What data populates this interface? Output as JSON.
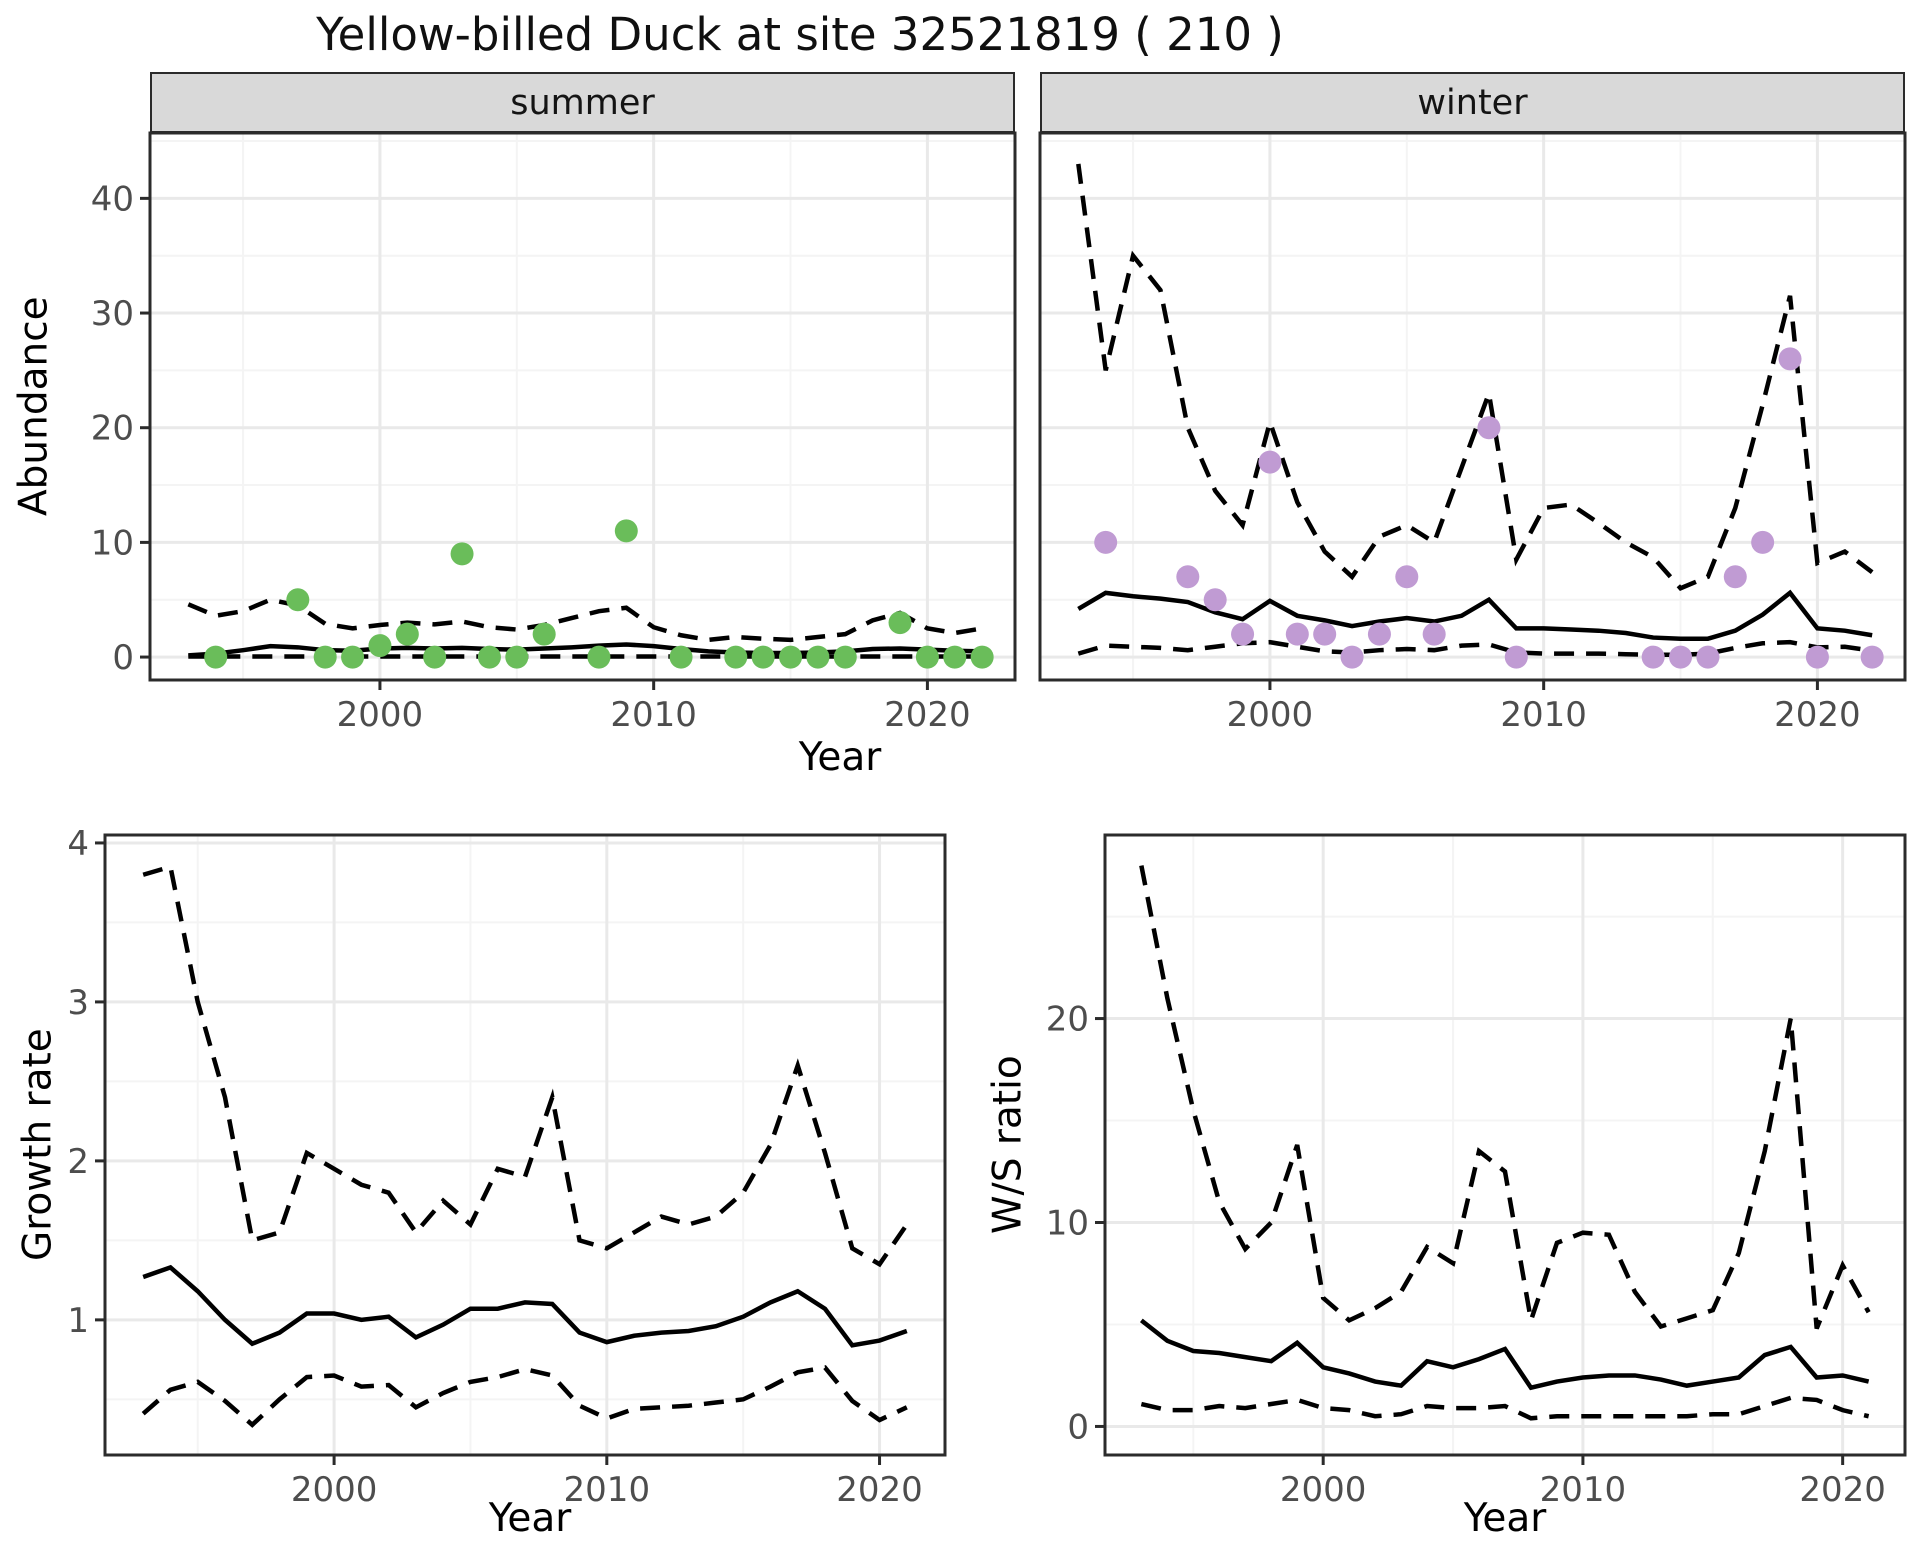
{
  "title": "Yellow-billed Duck at site 32521819 ( 210 )",
  "colors": {
    "summer_point": "#6abd5a",
    "winter_point": "#c09bd3",
    "line": "#000000",
    "grid_major": "#e9e9e9",
    "grid_minor": "#f4f4f4",
    "strip_bg": "#d9d9d9",
    "tick_text": "#4d4d4d",
    "border": "#2b2b2b"
  },
  "chart_data": [
    {
      "type": "line",
      "id": "abundance",
      "xlabel": "Year",
      "ylabel": "Abundance",
      "x_ticks": [
        2000,
        2010,
        2020
      ],
      "y_ticks": [
        0,
        10,
        20,
        30,
        40
      ],
      "x_minor": [
        1995,
        2005,
        2015
      ],
      "y_minor": [
        5,
        15,
        25,
        35,
        45
      ],
      "xlim": [
        1991.6,
        2023.2
      ],
      "ylim": [
        -2,
        45.7
      ],
      "years": [
        1993,
        1994,
        1995,
        1996,
        1997,
        1998,
        1999,
        2000,
        2001,
        2002,
        2003,
        2004,
        2005,
        2006,
        2007,
        2008,
        2009,
        2010,
        2011,
        2012,
        2013,
        2014,
        2015,
        2016,
        2017,
        2018,
        2019,
        2020,
        2021,
        2022
      ],
      "legend": "none",
      "grid": true,
      "facets": [
        {
          "facet_label": "summer",
          "median": [
            0.15,
            0.3,
            0.6,
            0.95,
            0.85,
            0.6,
            0.55,
            0.75,
            0.8,
            0.75,
            0.8,
            0.7,
            0.65,
            0.75,
            0.85,
            1.0,
            1.1,
            0.95,
            0.7,
            0.5,
            0.4,
            0.35,
            0.35,
            0.4,
            0.5,
            0.7,
            0.75,
            0.65,
            0.55,
            0.5
          ],
          "upper": [
            4.6,
            3.6,
            4.0,
            5.0,
            4.5,
            2.9,
            2.5,
            2.8,
            3.0,
            2.85,
            3.1,
            2.6,
            2.4,
            2.8,
            3.4,
            4.0,
            4.3,
            2.6,
            1.9,
            1.5,
            1.75,
            1.6,
            1.5,
            1.75,
            2.0,
            3.2,
            3.85,
            2.5,
            2.1,
            2.5
          ],
          "lower": [
            0.05,
            0.05,
            0.05,
            0.05,
            0.05,
            0.05,
            0.05,
            0.05,
            0.05,
            0.05,
            0.05,
            0.05,
            0.05,
            0.05,
            0.05,
            0.05,
            0.05,
            0.05,
            0.05,
            0.05,
            0.05,
            0.05,
            0.05,
            0.05,
            0.05,
            0.05,
            0.05,
            0.05,
            0.05,
            0.05
          ],
          "points": [
            [
              1994,
              0
            ],
            [
              1997,
              5
            ],
            [
              1998,
              0
            ],
            [
              1999,
              0
            ],
            [
              2000,
              1
            ],
            [
              2001,
              2
            ],
            [
              2002,
              0
            ],
            [
              2003,
              9
            ],
            [
              2004,
              0
            ],
            [
              2005,
              0
            ],
            [
              2006,
              2
            ],
            [
              2008,
              0
            ],
            [
              2009,
              11
            ],
            [
              2011,
              0
            ],
            [
              2013,
              0
            ],
            [
              2014,
              0
            ],
            [
              2015,
              0
            ],
            [
              2016,
              0
            ],
            [
              2017,
              0
            ],
            [
              2019,
              3
            ],
            [
              2020,
              0
            ],
            [
              2021,
              0
            ],
            [
              2022,
              0
            ]
          ]
        },
        {
          "facet_label": "winter",
          "median": [
            4.2,
            5.6,
            5.3,
            5.1,
            4.8,
            3.9,
            3.3,
            4.9,
            3.6,
            3.2,
            2.7,
            3.1,
            3.4,
            3.1,
            3.6,
            5.0,
            2.5,
            2.5,
            2.4,
            2.3,
            2.1,
            1.7,
            1.6,
            1.6,
            2.3,
            3.7,
            5.6,
            2.5,
            2.3,
            1.9
          ],
          "upper": [
            43,
            25,
            35,
            32,
            20,
            14.5,
            11.5,
            20.5,
            13.5,
            9.2,
            7,
            10.5,
            11.5,
            10,
            16.5,
            23,
            8.5,
            13,
            13.3,
            11.7,
            10,
            8.7,
            6,
            7,
            13,
            22,
            31.5,
            8.2,
            9.2,
            7.4
          ],
          "lower": [
            0.3,
            1.0,
            0.9,
            0.8,
            0.6,
            0.9,
            1.2,
            1.3,
            0.9,
            0.5,
            0.4,
            0.6,
            0.7,
            0.6,
            1.0,
            1.1,
            0.4,
            0.3,
            0.3,
            0.3,
            0.25,
            0.2,
            0.2,
            0.3,
            0.8,
            1.2,
            1.3,
            0.85,
            0.9,
            0.55
          ],
          "points": [
            [
              1994,
              10
            ],
            [
              1997,
              7
            ],
            [
              1998,
              5
            ],
            [
              1999,
              2
            ],
            [
              2000,
              17
            ],
            [
              2001,
              2
            ],
            [
              2002,
              2
            ],
            [
              2003,
              0
            ],
            [
              2004,
              2
            ],
            [
              2005,
              7
            ],
            [
              2006,
              2
            ],
            [
              2008,
              20
            ],
            [
              2009,
              0
            ],
            [
              2014,
              0
            ],
            [
              2015,
              0
            ],
            [
              2016,
              0
            ],
            [
              2017,
              7
            ],
            [
              2018,
              10
            ],
            [
              2019,
              26
            ],
            [
              2020,
              0
            ],
            [
              2022,
              0
            ]
          ]
        }
      ]
    },
    {
      "type": "line",
      "id": "growth_rate",
      "xlabel": "Year",
      "ylabel": "Growth rate",
      "x_ticks": [
        2000,
        2010,
        2020
      ],
      "y_ticks": [
        1,
        2,
        3,
        4
      ],
      "x_minor": [
        1995,
        2005,
        2015
      ],
      "y_minor": [
        0.5,
        1.5,
        2.5,
        3.5
      ],
      "xlim": [
        1991.6,
        2022.4
      ],
      "ylim": [
        0.15,
        4.05
      ],
      "years": [
        1993,
        1994,
        1995,
        1996,
        1997,
        1998,
        1999,
        2000,
        2001,
        2002,
        2003,
        2004,
        2005,
        2006,
        2007,
        2008,
        2009,
        2010,
        2011,
        2012,
        2013,
        2014,
        2015,
        2016,
        2017,
        2018,
        2019,
        2020,
        2021
      ],
      "median": [
        1.27,
        1.33,
        1.18,
        1.0,
        0.85,
        0.92,
        1.04,
        1.04,
        1.0,
        1.02,
        0.89,
        0.97,
        1.07,
        1.07,
        1.11,
        1.1,
        0.92,
        0.86,
        0.9,
        0.92,
        0.93,
        0.96,
        1.02,
        1.11,
        1.18,
        1.07,
        0.84,
        0.87,
        0.93
      ],
      "upper": [
        3.8,
        3.85,
        3.0,
        2.4,
        1.5,
        1.55,
        2.05,
        1.95,
        1.85,
        1.8,
        1.55,
        1.75,
        1.6,
        1.95,
        1.9,
        2.4,
        1.5,
        1.45,
        1.55,
        1.65,
        1.6,
        1.65,
        1.8,
        2.1,
        2.6,
        2.05,
        1.45,
        1.35,
        1.6
      ],
      "lower": [
        0.41,
        0.56,
        0.61,
        0.49,
        0.34,
        0.5,
        0.64,
        0.65,
        0.58,
        0.59,
        0.45,
        0.54,
        0.61,
        0.64,
        0.69,
        0.65,
        0.46,
        0.38,
        0.44,
        0.45,
        0.46,
        0.48,
        0.5,
        0.58,
        0.67,
        0.7,
        0.49,
        0.37,
        0.45
      ],
      "points": []
    },
    {
      "type": "line",
      "id": "ws_ratio",
      "xlabel": "Year",
      "ylabel": "W/S ratio",
      "x_ticks": [
        2000,
        2010,
        2020
      ],
      "y_ticks": [
        0,
        10,
        20
      ],
      "x_minor": [
        1995,
        2005,
        2015
      ],
      "y_minor": [
        5,
        15,
        25
      ],
      "xlim": [
        1991.6,
        2022.4
      ],
      "ylim": [
        -1.4,
        29.0
      ],
      "years": [
        1993,
        1994,
        1995,
        1996,
        1997,
        1998,
        1999,
        2000,
        2001,
        2002,
        2003,
        2004,
        2005,
        2006,
        2007,
        2008,
        2009,
        2010,
        2011,
        2012,
        2013,
        2014,
        2015,
        2016,
        2017,
        2018,
        2019,
        2020,
        2021
      ],
      "median": [
        5.2,
        4.2,
        3.7,
        3.6,
        3.4,
        3.2,
        4.1,
        2.9,
        2.6,
        2.2,
        2.0,
        3.2,
        2.9,
        3.3,
        3.8,
        1.9,
        2.2,
        2.4,
        2.5,
        2.5,
        2.3,
        2.0,
        2.2,
        2.4,
        3.5,
        3.9,
        2.4,
        2.5,
        2.2
      ],
      "upper": [
        27.5,
        21.0,
        15.5,
        11.0,
        8.7,
        10.0,
        13.8,
        6.3,
        5.2,
        5.8,
        6.6,
        8.8,
        8.0,
        13.5,
        12.5,
        5.2,
        9.0,
        9.5,
        9.4,
        6.6,
        4.9,
        5.3,
        5.7,
        8.5,
        13.5,
        20.0,
        4.8,
        7.9,
        5.6
      ],
      "lower": [
        1.1,
        0.8,
        0.8,
        1.0,
        0.9,
        1.1,
        1.3,
        0.9,
        0.8,
        0.5,
        0.6,
        1.0,
        0.9,
        0.9,
        1.0,
        0.4,
        0.5,
        0.5,
        0.5,
        0.5,
        0.5,
        0.5,
        0.6,
        0.6,
        1.0,
        1.4,
        1.3,
        0.8,
        0.5
      ],
      "points": []
    }
  ]
}
